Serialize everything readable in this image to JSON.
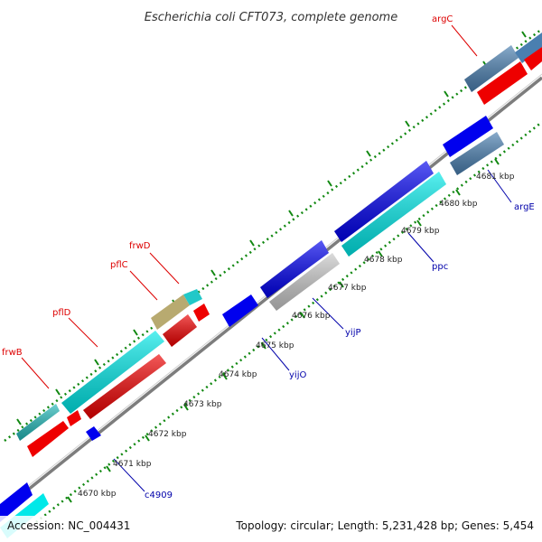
{
  "title": "Escherichia coli CFT073, complete genome",
  "footer": {
    "accession": "Accession: NC_004431",
    "summary": "Topology: circular; Length: 5,231,428 bp; Genes: 5,454"
  },
  "colors": {
    "forward_gene": "#0000ee",
    "reverse_gene": "#ee0000",
    "cyan_gene": "#00e8e8",
    "teal_gene": "#22b8b8",
    "steel_gene": "#4a7fb0",
    "gray_gene": "#c8c8c8",
    "olive_gene": "#b8aa70",
    "backbone": "#888888",
    "tick": "#118811",
    "blue_label": "#0000aa",
    "red_label": "#dd0000"
  },
  "kbp_ticks": [
    "4670 kbp",
    "4671 kbp",
    "4672 kbp",
    "4673 kbp",
    "4674 kbp",
    "4675 kbp",
    "4676 kbp",
    "4677 kbp",
    "4678 kbp",
    "4679 kbp",
    "4680 kbp",
    "4681 kbp"
  ],
  "gene_labels": {
    "argC": "argC",
    "argE": "argE",
    "ppc": "ppc",
    "yijP": "yijP",
    "yijO": "yijO",
    "c4909": "c4909",
    "frwD": "frwD",
    "pflC": "pflC",
    "pflD": "pflD",
    "frwB": "frwB"
  }
}
